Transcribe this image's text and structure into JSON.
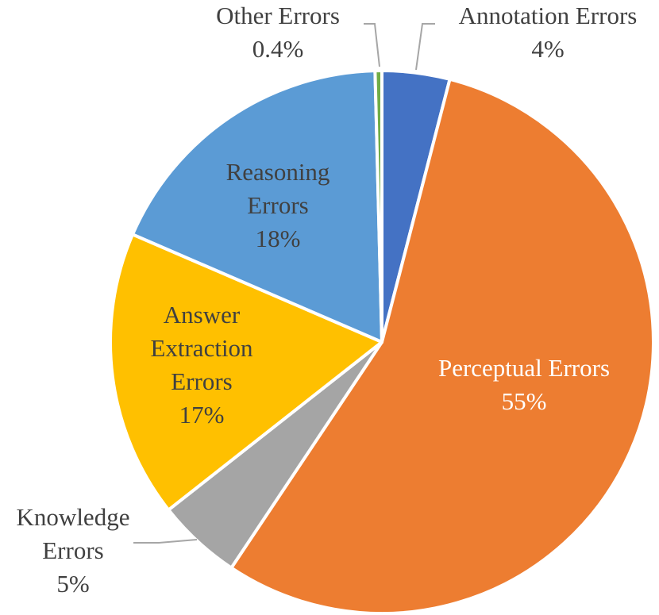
{
  "chart_data": {
    "type": "pie",
    "title": "",
    "slices": [
      {
        "name": "Annotation Errors",
        "label_lines": [
          "Annotation Errors"
        ],
        "value": 4,
        "value_label": "4%",
        "color": "#4472c4"
      },
      {
        "name": "Perceptual Errors",
        "label_lines": [
          "Perceptual Errors"
        ],
        "value": 55,
        "value_label": "55%",
        "color": "#ed7d31"
      },
      {
        "name": "Knowledge Errors",
        "label_lines": [
          "Knowledge",
          "Errors"
        ],
        "value": 5,
        "value_label": "5%",
        "color": "#a5a5a5"
      },
      {
        "name": "Answer Extraction Errors",
        "label_lines": [
          "Answer",
          "Extraction",
          "Errors"
        ],
        "value": 17,
        "value_label": "17%",
        "color": "#ffc000"
      },
      {
        "name": "Reasoning Errors",
        "label_lines": [
          "Reasoning",
          "Errors"
        ],
        "value": 18,
        "value_label": "18%",
        "color": "#5b9bd5"
      },
      {
        "name": "Other Errors",
        "label_lines": [
          "Other Errors"
        ],
        "value": 0.4,
        "value_label": "0.4%",
        "color": "#70ad47"
      }
    ],
    "legend": "none",
    "data_labels": "category-and-percent"
  }
}
